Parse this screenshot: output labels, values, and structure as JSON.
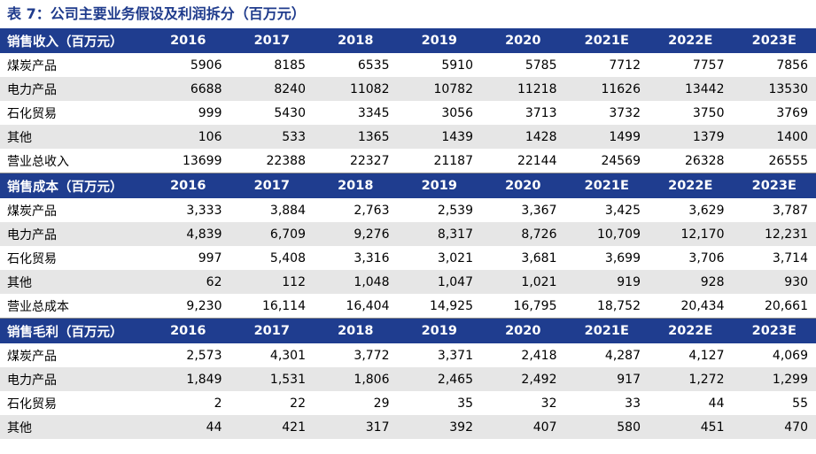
{
  "title": "表 7：公司主要业务假设及利润拆分（百万元）",
  "years": [
    "2016",
    "2017",
    "2018",
    "2019",
    "2020",
    "2021E",
    "2022E",
    "2023E"
  ],
  "sections": [
    {
      "header": "销售收入（百万元）",
      "rows": [
        {
          "label": "煤炭产品",
          "values": [
            "5906",
            "8185",
            "6535",
            "5910",
            "5785",
            "7712",
            "7757",
            "7856"
          ]
        },
        {
          "label": "电力产品",
          "values": [
            "6688",
            "8240",
            "11082",
            "10782",
            "11218",
            "11626",
            "13442",
            "13530"
          ]
        },
        {
          "label": "石化贸易",
          "values": [
            "999",
            "5430",
            "3345",
            "3056",
            "3713",
            "3732",
            "3750",
            "3769"
          ]
        },
        {
          "label": "其他",
          "values": [
            "106",
            "533",
            "1365",
            "1439",
            "1428",
            "1499",
            "1379",
            "1400"
          ]
        },
        {
          "label": "营业总收入",
          "values": [
            "13699",
            "22388",
            "22327",
            "21187",
            "22144",
            "24569",
            "26328",
            "26555"
          ]
        }
      ]
    },
    {
      "header": "销售成本（百万元）",
      "rows": [
        {
          "label": "煤炭产品",
          "values": [
            "3,333",
            "3,884",
            "2,763",
            "2,539",
            "3,367",
            "3,425",
            "3,629",
            "3,787"
          ]
        },
        {
          "label": "电力产品",
          "values": [
            "4,839",
            "6,709",
            "9,276",
            "8,317",
            "8,726",
            "10,709",
            "12,170",
            "12,231"
          ]
        },
        {
          "label": "石化贸易",
          "values": [
            "997",
            "5,408",
            "3,316",
            "3,021",
            "3,681",
            "3,699",
            "3,706",
            "3,714"
          ]
        },
        {
          "label": "其他",
          "values": [
            "62",
            "112",
            "1,048",
            "1,047",
            "1,021",
            "919",
            "928",
            "930"
          ]
        },
        {
          "label": "营业总成本",
          "values": [
            "9,230",
            "16,114",
            "16,404",
            "14,925",
            "16,795",
            "18,752",
            "20,434",
            "20,661"
          ]
        }
      ]
    },
    {
      "header": "销售毛利（百万元）",
      "rows": [
        {
          "label": "煤炭产品",
          "values": [
            "2,573",
            "4,301",
            "3,772",
            "3,371",
            "2,418",
            "4,287",
            "4,127",
            "4,069"
          ]
        },
        {
          "label": "电力产品",
          "values": [
            "1,849",
            "1,531",
            "1,806",
            "2,465",
            "2,492",
            "917",
            "1,272",
            "1,299"
          ]
        },
        {
          "label": "石化贸易",
          "values": [
            "2",
            "22",
            "29",
            "35",
            "32",
            "33",
            "44",
            "55"
          ]
        },
        {
          "label": "其他",
          "values": [
            "44",
            "421",
            "317",
            "392",
            "407",
            "580",
            "451",
            "470"
          ]
        }
      ]
    }
  ]
}
